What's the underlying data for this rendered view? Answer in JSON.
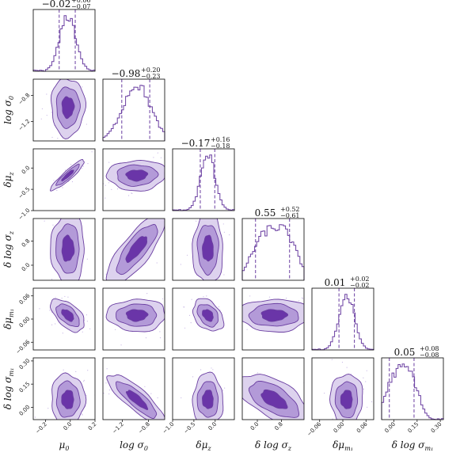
{
  "chart_data": {
    "type": "corner",
    "colors": {
      "outer": "#ddd2ee",
      "mid": "#b39ad8",
      "inner": "#6a35a8",
      "line": "#6a3ea1",
      "dots": "#c9b8e6"
    },
    "parameters": [
      {
        "name": "mu0",
        "label": "μ₀",
        "label_main": "μ",
        "label_sub": "0",
        "range": [
          -0.3,
          0.2
        ],
        "ticks": [
          -0.2,
          0.0,
          0.2
        ],
        "tick_labels": [
          "−0.2",
          "0.0",
          "0.2"
        ],
        "title_main": "−0.02",
        "title_plus": "+0.06",
        "title_minus": "−0.07",
        "median": -0.02,
        "q_low": -0.09,
        "q_high": 0.04
      },
      {
        "name": "log_sigma0",
        "label": "log σ₀",
        "label_main": "log σ",
        "label_sub": "0",
        "range": [
          -1.5,
          -0.55
        ],
        "ticks": [
          -1.2,
          -0.8
        ],
        "tick_labels": [
          "−1.2",
          "−0.8"
        ],
        "title_main": "−0.98",
        "title_plus": "+0.20",
        "title_minus": "−0.23",
        "median": -0.98,
        "q_low": -1.21,
        "q_high": -0.78
      },
      {
        "name": "delta_mu_z",
        "label": "δμ_z",
        "label_main": "δμ",
        "label_sub": "z",
        "range": [
          -1.0,
          0.45
        ],
        "ticks": [
          -1.0,
          -0.5,
          0.0
        ],
        "tick_labels": [
          "−1.0",
          "−0.5",
          "0.0"
        ],
        "title_main": "−0.17",
        "title_plus": "+0.16",
        "title_minus": "−0.18",
        "median": -0.17,
        "q_low": -0.35,
        "q_high": -0.01
      },
      {
        "name": "delta_log_sigma_z",
        "label": "δ log σ_z",
        "label_main": "δ log σ",
        "label_sub": "z",
        "range": [
          -0.5,
          1.55
        ],
        "ticks": [
          0.0,
          0.8
        ],
        "tick_labels": [
          "0.0",
          "0.8"
        ],
        "title_main": "0.55",
        "title_plus": "+0.52",
        "title_minus": "−0.61",
        "median": 0.55,
        "q_low": -0.06,
        "q_high": 1.07
      },
      {
        "name": "delta_mu_m1",
        "label": "δμ_m₁",
        "label_main": "δμ",
        "label_sub": "m₁",
        "range": [
          -0.08,
          0.08
        ],
        "ticks": [
          -0.06,
          0.0,
          0.06
        ],
        "tick_labels": [
          "−0.06",
          "0.00",
          "0.06"
        ],
        "title_main": "0.01",
        "title_plus": "+0.02",
        "title_minus": "−0.02",
        "median": 0.01,
        "q_low": -0.01,
        "q_high": 0.03
      },
      {
        "name": "delta_log_sigma_m1",
        "label": "δ log σ_m₁",
        "label_main": "δ log σ",
        "label_sub": "m₁",
        "range": [
          -0.08,
          0.32
        ],
        "ticks": [
          0.0,
          0.15,
          0.3
        ],
        "tick_labels": [
          "0.00",
          "0.15",
          "0.30"
        ],
        "title_main": "0.05",
        "title_plus": "+0.08",
        "title_minus": "−0.08",
        "median": 0.05,
        "q_low": -0.03,
        "q_high": 0.13
      }
    ],
    "correlations": [
      [
        1,
        0,
        0,
        0,
        0,
        0
      ],
      [
        0.0,
        1,
        0,
        0,
        0,
        0
      ],
      [
        0.92,
        0.05,
        1,
        0,
        0,
        0
      ],
      [
        0.0,
        0.8,
        0.0,
        1,
        0,
        0
      ],
      [
        -0.55,
        0.0,
        -0.35,
        0.0,
        1,
        0
      ],
      [
        0.0,
        -0.85,
        0.0,
        -0.6,
        0.0,
        1
      ]
    ]
  }
}
